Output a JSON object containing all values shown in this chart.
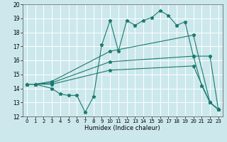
{
  "xlabel": "Humidex (Indice chaleur)",
  "bg_color": "#cce8ec",
  "grid_color": "#ffffff",
  "line_color": "#1a7a6e",
  "xlim": [
    -0.5,
    23.5
  ],
  "ylim": [
    12,
    20
  ],
  "xticks": [
    0,
    1,
    2,
    3,
    4,
    5,
    6,
    7,
    8,
    9,
    10,
    11,
    12,
    13,
    14,
    15,
    16,
    17,
    18,
    19,
    20,
    21,
    22,
    23
  ],
  "yticks": [
    12,
    13,
    14,
    15,
    16,
    17,
    18,
    19,
    20
  ],
  "series1_x": [
    0,
    1,
    3,
    4,
    5,
    6,
    7,
    8,
    9,
    10,
    11,
    12,
    13,
    14,
    15,
    16,
    17,
    18,
    19,
    20,
    21,
    22,
    23
  ],
  "series1_y": [
    14.3,
    14.3,
    14.0,
    13.6,
    13.5,
    13.5,
    12.3,
    13.4,
    17.1,
    18.85,
    16.65,
    18.85,
    18.5,
    18.85,
    19.05,
    19.55,
    19.2,
    18.5,
    18.75,
    16.3,
    14.2,
    13.0,
    12.5
  ],
  "series2_x": [
    0,
    1,
    3,
    10,
    20,
    22,
    23
  ],
  "series2_y": [
    14.3,
    14.3,
    14.5,
    16.65,
    17.8,
    13.0,
    12.5
  ],
  "series3_x": [
    0,
    1,
    3,
    10,
    20,
    22,
    23
  ],
  "series3_y": [
    14.3,
    14.3,
    14.4,
    15.9,
    16.3,
    16.3,
    12.5
  ],
  "series4_x": [
    0,
    1,
    3,
    10,
    20,
    22,
    23
  ],
  "series4_y": [
    14.3,
    14.3,
    14.3,
    15.3,
    15.6,
    13.0,
    12.5
  ]
}
